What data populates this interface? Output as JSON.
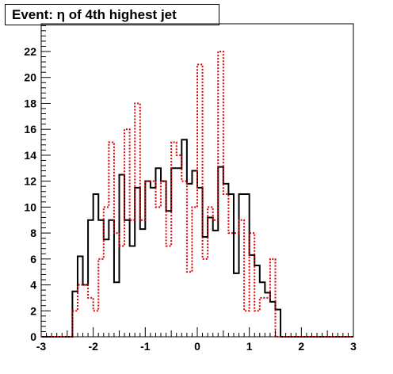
{
  "title": "Event: η of 4th highest jet",
  "chart_data": {
    "type": "histogram",
    "title": "Event: η of 4th highest jet",
    "xlabel": "",
    "ylabel": "",
    "xlim": [
      -3,
      3
    ],
    "ylim": [
      0,
      22
    ],
    "grid": false,
    "legend": "none",
    "bin_edges_start": -3,
    "bin_width": 0.1,
    "x_ticks": [
      -3,
      -2,
      -1,
      0,
      1,
      2,
      3
    ],
    "x_tick_labels": [
      "-3",
      "-2",
      "-1",
      "0",
      "1",
      "2",
      "3"
    ],
    "y_ticks": [
      0,
      2,
      4,
      6,
      8,
      10,
      12,
      14,
      16,
      18,
      20,
      22
    ],
    "y_tick_labels": [
      "0",
      "2",
      "4",
      "6",
      "8",
      "10",
      "12",
      "14",
      "16",
      "18",
      "20",
      "22"
    ],
    "series": [
      {
        "color": "#000000",
        "style": "solid",
        "values": [
          0,
          0,
          0,
          0,
          0,
          0,
          3.5,
          6.2,
          4.0,
          9.0,
          11.0,
          9.0,
          7.5,
          9.0,
          4.2,
          12.5,
          9.0,
          7.0,
          11.5,
          8.3,
          12.0,
          11.5,
          13.0,
          12.0,
          9.7,
          13.0,
          13.0,
          15.2,
          11.8,
          12.8,
          11.5,
          7.7,
          9.2,
          8.2,
          13.1,
          11.8,
          11.0,
          4.9,
          11.0,
          11.0,
          6.3,
          5.5,
          4.2,
          3.4,
          2.7,
          2.1,
          0,
          0,
          0,
          0,
          0,
          0,
          0,
          0,
          0,
          0,
          0,
          0,
          0,
          0
        ]
      },
      {
        "color": "#dd0000",
        "style": "dotted",
        "values": [
          0,
          0,
          0,
          0,
          0,
          0,
          2.0,
          4.0,
          4.0,
          3.0,
          2.0,
          6.0,
          10.0,
          15.0,
          8.0,
          7.0,
          16.0,
          9.0,
          18.0,
          9.0,
          12.0,
          12.0,
          10.0,
          12.0,
          7.0,
          15.0,
          14.0,
          12.0,
          5.0,
          10.0,
          21.0,
          6.0,
          10.0,
          9.0,
          22.0,
          11.0,
          8.0,
          8.0,
          9.0,
          2.0,
          8.0,
          2.0,
          3.0,
          3.0,
          6.0,
          0,
          0,
          0,
          0,
          0,
          0,
          0,
          0,
          0,
          0,
          0,
          0,
          0,
          0,
          0
        ]
      }
    ]
  }
}
